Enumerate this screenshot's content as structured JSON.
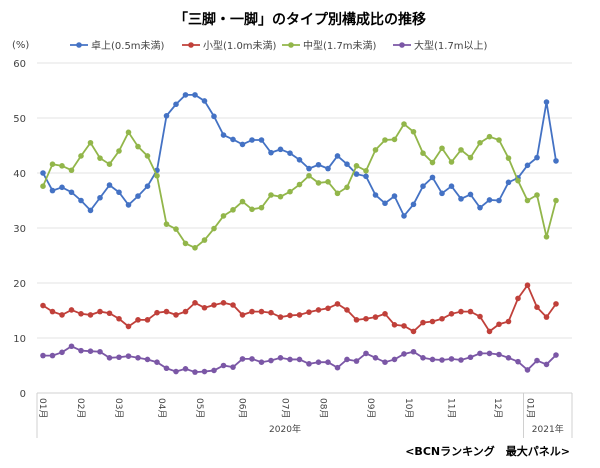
{
  "chart_data": {
    "type": "line",
    "title": "「三脚・一脚」のタイプ別構成比の推移",
    "ylabel": "(%)",
    "ylim": [
      0,
      60
    ],
    "yticks": [
      0,
      10,
      20,
      30,
      40,
      50,
      60
    ],
    "grid": true,
    "legend_position": "top",
    "month_labels": [
      "01月",
      "02月",
      "03月",
      "04月",
      "05月",
      "06月",
      "07月",
      "08月",
      "09月",
      "10月",
      "11月",
      "12月",
      "01月"
    ],
    "month_tick_index": [
      0,
      4,
      8,
      12.5,
      16.5,
      21,
      25.5,
      29.5,
      34.5,
      38.5,
      43,
      47.9,
      51.3
    ],
    "years": [
      {
        "label": "2020年",
        "start_index": 0,
        "end_index": 51
      },
      {
        "label": "2021年",
        "start_index": 51,
        "end_index": 54
      }
    ],
    "source": "<BCNランキング　最大パネル>",
    "series": [
      {
        "name": "卓上(0.5m未満)",
        "color": "#4472C4",
        "values": [
          40.0,
          36.8,
          37.4,
          36.5,
          35.0,
          33.2,
          35.5,
          37.8,
          36.5,
          34.2,
          35.8,
          37.6,
          40.5,
          50.4,
          52.5,
          54.2,
          54.2,
          53.1,
          50.3,
          46.9,
          46.1,
          45.2,
          46.0,
          46.0,
          43.7,
          44.3,
          43.6,
          42.4,
          40.8,
          41.5,
          40.8,
          43.1,
          41.6,
          39.8,
          39.4,
          36.0,
          34.5,
          35.8,
          32.2,
          34.3,
          37.6,
          39.2,
          36.3,
          37.6,
          35.3,
          36.1,
          33.7,
          35.1,
          35.0,
          38.3,
          39.1,
          41.4,
          42.8,
          52.9,
          42.2
        ]
      },
      {
        "name": "小型(1.0m未満)",
        "color": "#C0403A",
        "values": [
          15.9,
          14.8,
          14.2,
          15.1,
          14.4,
          14.2,
          14.8,
          14.5,
          13.5,
          12.1,
          13.3,
          13.3,
          14.6,
          14.8,
          14.2,
          14.8,
          16.4,
          15.5,
          16.0,
          16.4,
          16.0,
          14.2,
          14.8,
          14.8,
          14.6,
          13.8,
          14.1,
          14.2,
          14.7,
          15.1,
          15.4,
          16.2,
          15.1,
          13.3,
          13.5,
          13.8,
          14.4,
          12.4,
          12.2,
          11.2,
          12.8,
          13.0,
          13.5,
          14.4,
          14.8,
          14.8,
          13.9,
          11.2,
          12.5,
          13.0,
          17.2,
          19.6,
          15.6,
          13.8,
          16.2
        ]
      },
      {
        "name": "中型(1.7m未満)",
        "color": "#92B64A",
        "values": [
          37.6,
          41.6,
          41.3,
          40.5,
          43.1,
          45.5,
          42.7,
          41.6,
          44.0,
          47.4,
          44.8,
          43.1,
          39.5,
          30.7,
          29.8,
          27.2,
          26.4,
          27.8,
          29.9,
          32.2,
          33.3,
          34.8,
          33.4,
          33.7,
          36.0,
          35.7,
          36.6,
          37.9,
          39.5,
          38.2,
          38.4,
          36.3,
          37.4,
          41.3,
          40.4,
          44.2,
          46.0,
          46.1,
          48.9,
          47.5,
          43.6,
          41.9,
          44.5,
          42.0,
          44.2,
          42.8,
          45.5,
          46.6,
          46.0,
          42.7,
          38.6,
          35.0,
          36.0,
          28.4,
          35.0
        ]
      },
      {
        "name": "大型(1.7m以上)",
        "color": "#7B57A6",
        "values": [
          6.8,
          6.8,
          7.4,
          8.5,
          7.7,
          7.6,
          7.5,
          6.4,
          6.5,
          6.7,
          6.4,
          6.1,
          5.6,
          4.5,
          3.9,
          4.4,
          3.8,
          3.9,
          4.1,
          5.0,
          4.7,
          6.2,
          6.2,
          5.6,
          5.9,
          6.4,
          6.1,
          6.1,
          5.3,
          5.6,
          5.6,
          4.6,
          6.1,
          5.8,
          7.2,
          6.4,
          5.6,
          6.1,
          7.1,
          7.5,
          6.4,
          6.1,
          6.0,
          6.2,
          6.0,
          6.5,
          7.2,
          7.2,
          7.0,
          6.4,
          5.7,
          4.2,
          5.9,
          5.2,
          6.9
        ]
      }
    ]
  }
}
